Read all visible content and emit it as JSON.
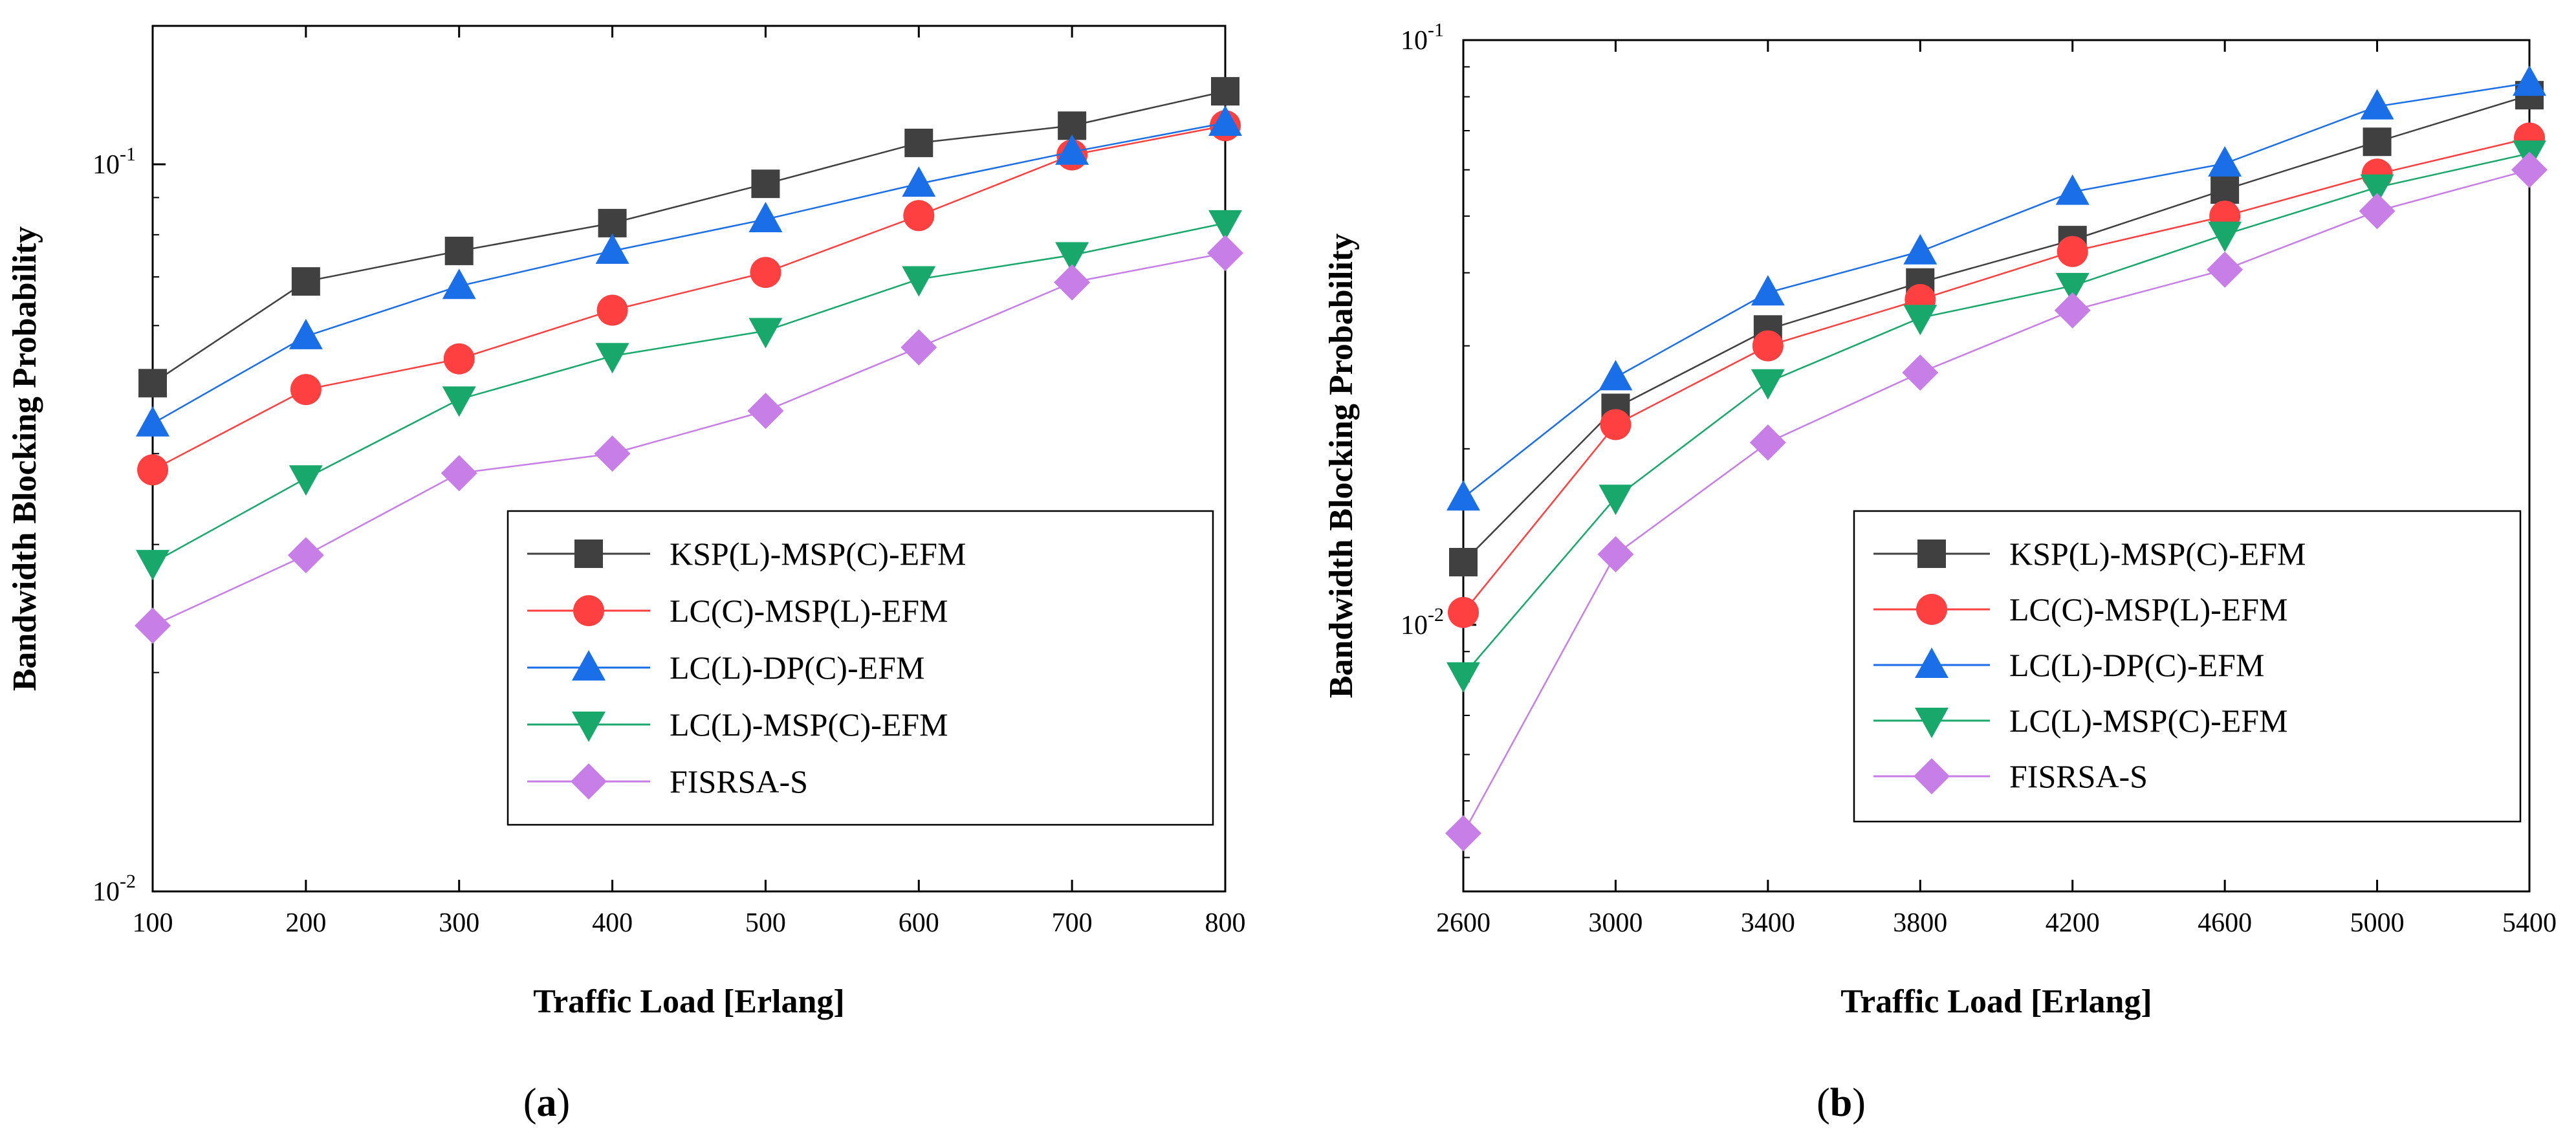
{
  "figure": {
    "panels": [
      "a",
      "b"
    ]
  },
  "chart_data": [
    {
      "type": "line",
      "panel_label": "a",
      "title": "",
      "xlabel": "Traffic Load [Erlang]",
      "ylabel": "Bandwidth Blocking Probability",
      "y_scale": "log",
      "xlim": [
        100,
        800
      ],
      "ylim": [
        0.01,
        0.155
      ],
      "x": [
        100,
        200,
        300,
        400,
        500,
        600,
        700,
        800
      ],
      "x_tick_labels": [
        "100",
        "200",
        "300",
        "400",
        "500",
        "600",
        "700",
        "800"
      ],
      "y_ticks": [
        {
          "value": 0.1,
          "mantissa": "10",
          "exponent": "-1"
        },
        {
          "value": 0.01,
          "mantissa": "10",
          "exponent": "-2"
        }
      ],
      "legend_position": "lower-right",
      "series": [
        {
          "name": "KSP(L)-MSP(C)-EFM",
          "color": "#404040",
          "marker": "square",
          "values": [
            0.05,
            0.069,
            0.076,
            0.083,
            0.094,
            0.107,
            0.113,
            0.126
          ]
        },
        {
          "name": "LC(C)-MSP(L)-EFM",
          "color": "#ff4040",
          "marker": "circle",
          "values": [
            0.038,
            0.049,
            0.054,
            0.063,
            0.071,
            0.085,
            0.103,
            0.113
          ]
        },
        {
          "name": "LC(L)-DP(C)-EFM",
          "color": "#1a6fe8",
          "marker": "triangle-up",
          "values": [
            0.044,
            0.058,
            0.068,
            0.076,
            0.084,
            0.094,
            0.104,
            0.114
          ]
        },
        {
          "name": "LC(L)-MSP(C)-EFM",
          "color": "#18a86c",
          "marker": "triangle-down",
          "values": [
            0.0283,
            0.037,
            0.0475,
            0.0545,
            0.059,
            0.0695,
            0.075,
            0.083
          ]
        },
        {
          "name": "FISRSA-S",
          "color": "#c77ee6",
          "marker": "diamond",
          "values": [
            0.0232,
            0.029,
            0.0376,
            0.04,
            0.0458,
            0.056,
            0.0688,
            0.0755
          ]
        }
      ]
    },
    {
      "type": "line",
      "panel_label": "b",
      "title": "",
      "xlabel": "Traffic Load [Erlang]",
      "ylabel": "Bandwidth Blocking Probability",
      "y_scale": "log",
      "xlim": [
        2600,
        5400
      ],
      "ylim": [
        0.0035,
        0.1
      ],
      "x": [
        2600,
        3000,
        3400,
        3800,
        4200,
        4600,
        5000,
        5400
      ],
      "x_tick_labels": [
        "2600",
        "3000",
        "3400",
        "3800",
        "4200",
        "4600",
        "5000",
        "5400"
      ],
      "y_ticks": [
        {
          "value": 0.1,
          "mantissa": "10",
          "exponent": "-1"
        },
        {
          "value": 0.01,
          "mantissa": "10",
          "exponent": "-2"
        }
      ],
      "legend_position": "lower-right",
      "series": [
        {
          "name": "KSP(L)-MSP(C)-EFM",
          "color": "#404040",
          "marker": "square",
          "values": [
            0.0128,
            0.0235,
            0.032,
            0.0385,
            0.0455,
            0.0555,
            0.067,
            0.0805
          ]
        },
        {
          "name": "LC(C)-MSP(L)-EFM",
          "color": "#ff4040",
          "marker": "circle",
          "values": [
            0.0105,
            0.022,
            0.03,
            0.036,
            0.0435,
            0.05,
            0.059,
            0.068
          ]
        },
        {
          "name": "LC(L)-DP(C)-EFM",
          "color": "#1a6fe8",
          "marker": "triangle-up",
          "values": [
            0.0165,
            0.0265,
            0.037,
            0.0435,
            0.055,
            0.0615,
            0.077,
            0.0845
          ]
        },
        {
          "name": "LC(L)-MSP(C)-EFM",
          "color": "#18a86c",
          "marker": "triangle-down",
          "values": [
            0.0082,
            0.0165,
            0.026,
            0.0335,
            0.038,
            0.0465,
            0.056,
            0.064
          ]
        },
        {
          "name": "FISRSA-S",
          "color": "#c77ee6",
          "marker": "diamond",
          "values": [
            0.0044,
            0.0132,
            0.0205,
            0.027,
            0.0345,
            0.0405,
            0.051,
            0.06
          ]
        }
      ]
    }
  ]
}
